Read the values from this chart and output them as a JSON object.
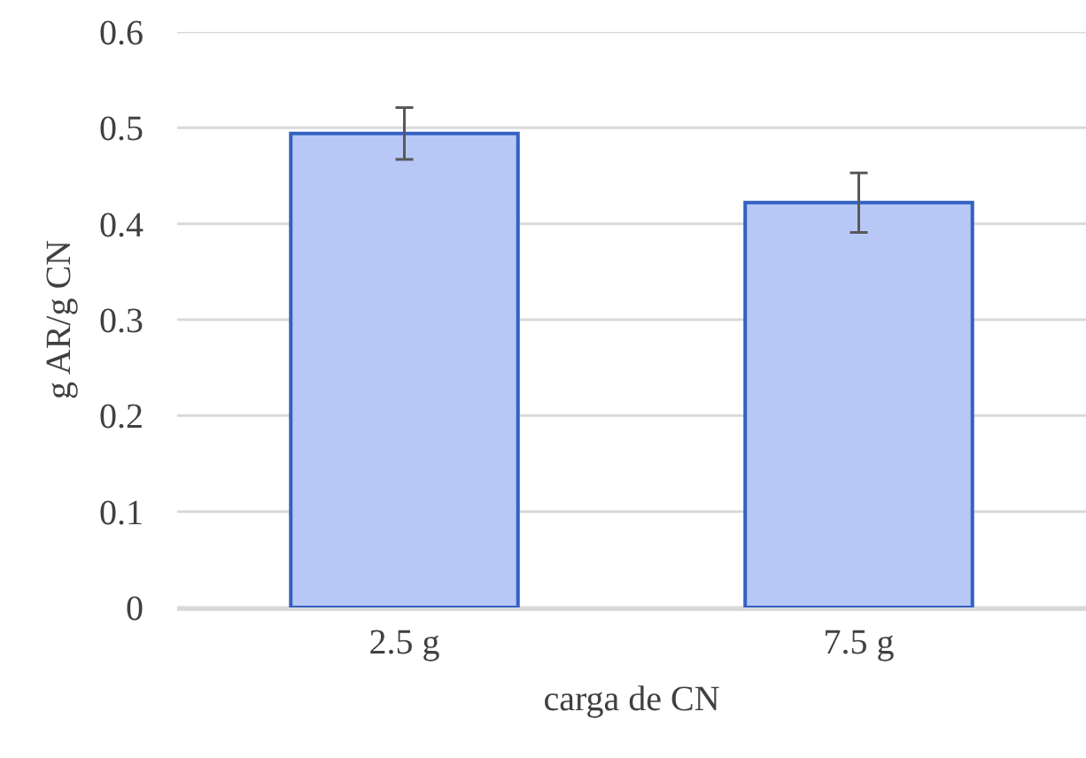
{
  "chart_data": {
    "type": "bar",
    "xlabel": "carga de CN",
    "ylabel": "g AR/g CN",
    "categories": [
      "2.5 g",
      "7.5 g"
    ],
    "series": [
      {
        "color": "#b7c8f7",
        "values": [
          0.494,
          0.422
        ],
        "errors": [
          0.027,
          0.031
        ]
      }
    ],
    "ylim": [
      0,
      0.6
    ],
    "yticks": [
      0,
      0.1,
      0.2,
      0.3,
      0.4,
      0.5,
      0.6
    ],
    "grid": "y"
  }
}
